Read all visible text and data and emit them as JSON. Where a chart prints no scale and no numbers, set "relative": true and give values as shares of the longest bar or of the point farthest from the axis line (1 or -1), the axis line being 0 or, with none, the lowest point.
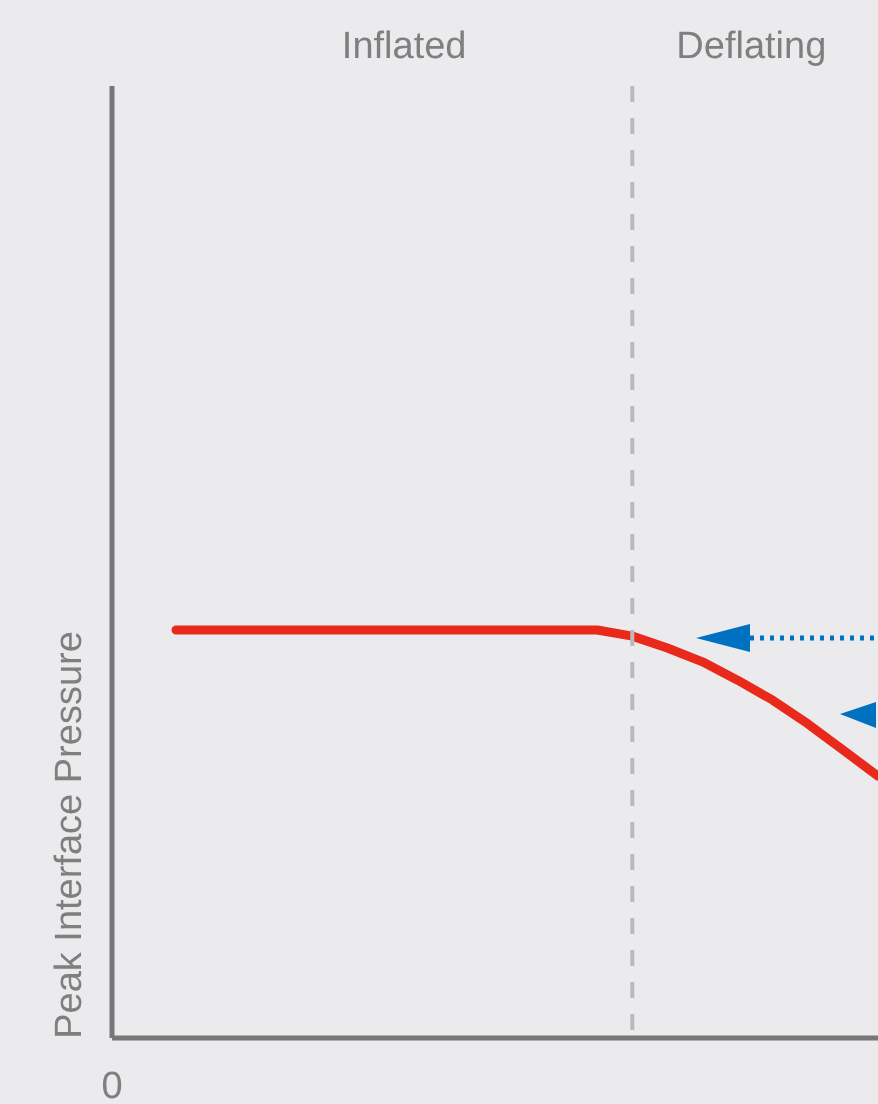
{
  "chart_data": {
    "type": "line",
    "ylabel": "Peak Interface Pressure",
    "annotations": [
      "Inflated",
      "Deflating",
      "0"
    ],
    "relative": true,
    "categories": [
      null,
      null,
      null,
      null,
      null,
      null,
      null,
      null,
      null,
      null,
      null,
      null,
      null,
      null,
      null,
      null,
      null,
      null,
      null,
      null,
      null
    ],
    "series": [
      {
        "color": "#e8291c",
        "values": [
          1,
          1,
          1,
          1,
          1,
          1,
          1,
          1,
          1,
          1,
          1,
          1,
          1,
          0.985,
          0.956,
          0.922,
          0.877,
          0.828,
          0.77,
          0.706,
          0.642
        ]
      }
    ],
    "ref_lines": [
      {
        "axis": "x",
        "color": "#bbbbbb",
        "line_style": "dashed"
      }
    ]
  }
}
